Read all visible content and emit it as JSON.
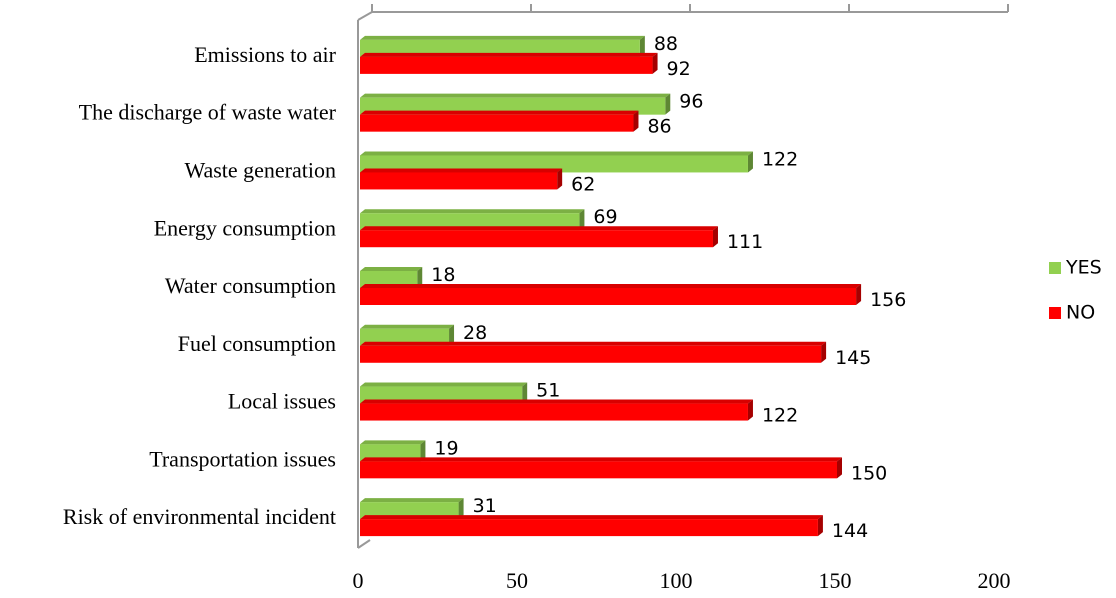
{
  "chart_data": {
    "type": "bar",
    "orientation": "horizontal",
    "categories": [
      "Emissions to air",
      "The discharge of waste water",
      "Waste generation",
      "Energy consumption",
      "Water consumption",
      "Fuel consumption",
      "Local issues",
      "Transportation issues",
      "Risk of environmental incident"
    ],
    "series": [
      {
        "name": "YES",
        "color": "#92d050",
        "values": [
          88,
          96,
          122,
          69,
          18,
          28,
          51,
          19,
          31
        ]
      },
      {
        "name": "NO",
        "color": "#ff0000",
        "values": [
          92,
          86,
          62,
          111,
          156,
          145,
          122,
          150,
          144
        ]
      }
    ],
    "xlim": [
      0,
      200
    ],
    "xticks": [
      0,
      50,
      100,
      150,
      200
    ],
    "legend": "right"
  }
}
